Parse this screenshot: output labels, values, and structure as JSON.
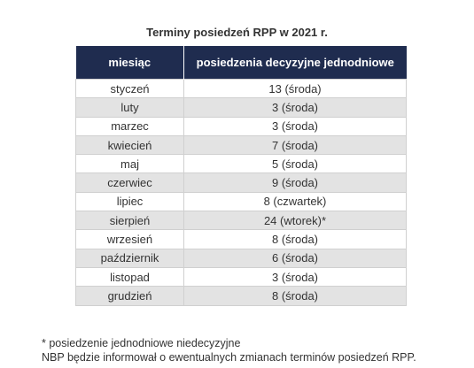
{
  "title": "Terminy posiedzeń RPP w 2021 r.",
  "table": {
    "header": [
      "miesiąc",
      "posiedzenia decyzyjne jednodniowe"
    ],
    "rows": [
      [
        "styczeń",
        "13 (środa)"
      ],
      [
        "luty",
        "3 (środa)"
      ],
      [
        "marzec",
        "3 (środa)"
      ],
      [
        "kwiecień",
        "7 (środa)"
      ],
      [
        "maj",
        "5 (środa)"
      ],
      [
        "czerwiec",
        "9 (środa)"
      ],
      [
        "lipiec",
        "8 (czwartek)"
      ],
      [
        "sierpień",
        "24 (wtorek)*"
      ],
      [
        "wrzesień",
        "8 (środa)"
      ],
      [
        "październik",
        "6 (środa)"
      ],
      [
        "listopad",
        "3 (środa)"
      ],
      [
        "grudzień",
        "8 (środa)"
      ]
    ]
  },
  "footnotes": [
    "* posiedzenie jednodniowe niedecyzyjne",
    "NBP będzie informował o ewentualnych zmianach terminów posiedzeń RPP."
  ]
}
